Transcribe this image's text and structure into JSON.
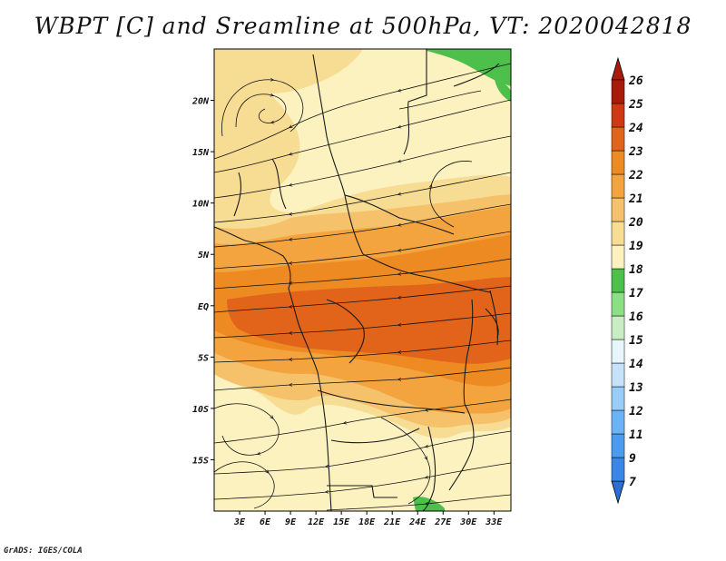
{
  "title": "WBPT [C] and Sreamline at 500hPa, VT: 2020042818",
  "credit": "GrADS: IGES/COLA",
  "map": {
    "variable": "WBPT",
    "units": "C",
    "level": "500hPa",
    "valid_time": "2020042818",
    "lon_range": [
      0,
      35
    ],
    "lat_range": [
      -20,
      25
    ],
    "x_ticks": [
      "3E",
      "6E",
      "9E",
      "12E",
      "15E",
      "18E",
      "21E",
      "24E",
      "27E",
      "30E",
      "33E"
    ],
    "x_tick_values": [
      3,
      6,
      9,
      12,
      15,
      18,
      21,
      24,
      27,
      30,
      33
    ],
    "y_ticks": [
      "20N",
      "15N",
      "10N",
      "5N",
      "EQ",
      "5S",
      "10S",
      "15S"
    ],
    "y_tick_values": [
      20,
      15,
      10,
      5,
      0,
      -5,
      -10,
      -15
    ]
  },
  "colorbar": {
    "labels": [
      "7",
      "9",
      "11",
      "12",
      "13",
      "14",
      "15",
      "16",
      "17",
      "18",
      "19",
      "20",
      "21",
      "22",
      "23",
      "24",
      "25",
      "26"
    ],
    "colors": [
      "#2a6fd6",
      "#3a85e8",
      "#4b9cf0",
      "#6cb2f6",
      "#98cdf8",
      "#c4e3fa",
      "#e6f6fb",
      "#c8edc3",
      "#8ddf86",
      "#4cc04a",
      "#fbf2c0",
      "#f7dc93",
      "#f5c16a",
      "#f4a43e",
      "#ee8a22",
      "#e2641a",
      "#cf3812",
      "#a81a0a"
    ]
  }
}
